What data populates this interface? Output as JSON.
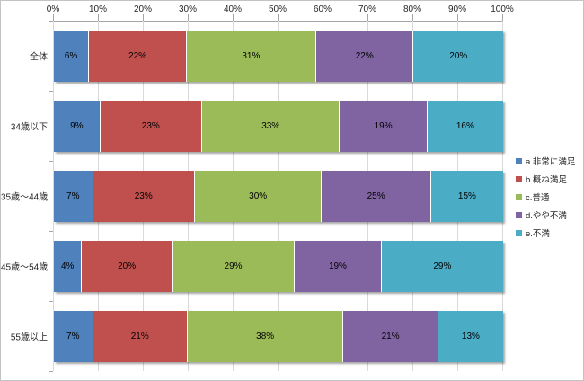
{
  "chart_data": {
    "type": "bar",
    "orientation": "horizontal-stacked",
    "title": "",
    "categories": [
      "全体",
      "34歳以下",
      "35歳～44歳",
      "45歳～54歳",
      "55歳以上"
    ],
    "series": [
      {
        "name": "a.非常に満足",
        "color": "#4F81BD",
        "values": [
          6,
          9,
          7,
          4,
          7
        ]
      },
      {
        "name": "b.概ね満足",
        "color": "#C0504D",
        "values": [
          22,
          23,
          23,
          20,
          21
        ]
      },
      {
        "name": "c.普通",
        "color": "#9BBB59",
        "values": [
          31,
          33,
          30,
          29,
          38
        ]
      },
      {
        "name": "d.やや不満",
        "color": "#8064A2",
        "values": [
          22,
          19,
          25,
          19,
          21
        ]
      },
      {
        "name": "e.不満",
        "color": "#4BACC6",
        "values": [
          20,
          16,
          15,
          29,
          13
        ]
      }
    ],
    "data_label_suffix": "%",
    "x_ticks": [
      "0%",
      "10%",
      "20%",
      "30%",
      "40%",
      "50%",
      "60%",
      "70%",
      "80%",
      "90%",
      "100%"
    ],
    "xlim": [
      0,
      100
    ],
    "gridlines": true,
    "legend_position": "right",
    "colors": {
      "gridline": "#d9d9d9",
      "axis": "#a6a6a6",
      "text": "#262626",
      "background": "#ffffff"
    }
  }
}
